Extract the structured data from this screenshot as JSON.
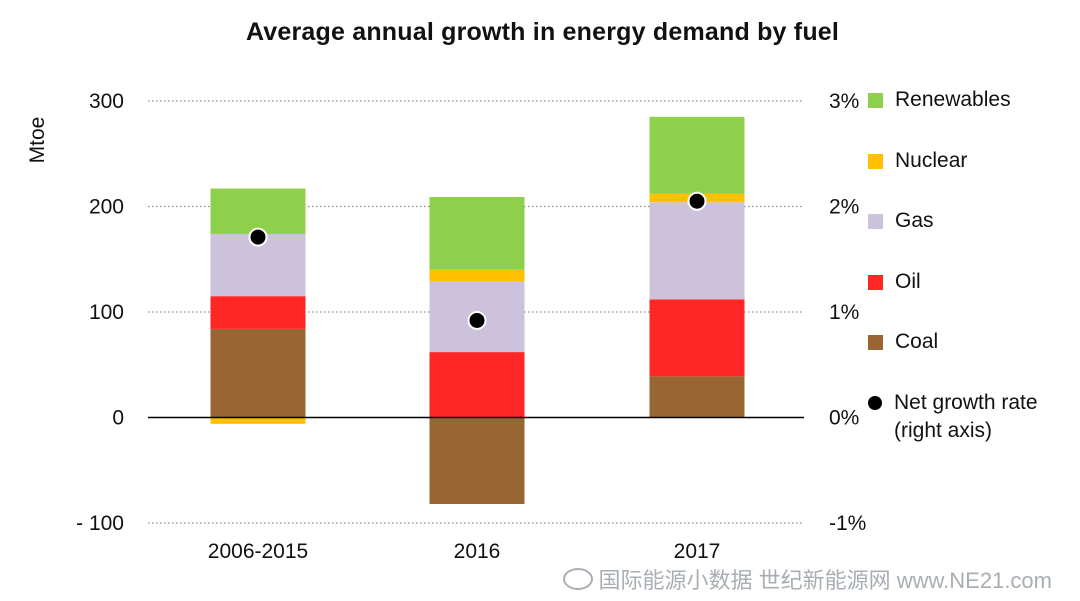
{
  "chart_data": {
    "type": "bar",
    "stacked": true,
    "title": "Average annual growth in energy demand by fuel",
    "ylabel": "Mtoe",
    "ylim": [
      -100,
      300
    ],
    "yticks": [
      {
        "value": 300,
        "label": "300"
      },
      {
        "value": 200,
        "label": "200"
      },
      {
        "value": 100,
        "label": "100"
      },
      {
        "value": 0,
        "label": "0"
      },
      {
        "value": -100,
        "label": "- 100"
      }
    ],
    "y2ticks": [
      "3%",
      "2%",
      "1%",
      "0%",
      "-1%"
    ],
    "categories": [
      "2006-2015",
      "2016",
      "2017"
    ],
    "series": [
      {
        "name": "Coal",
        "color": "#996633",
        "values": [
          84,
          -82,
          39
        ]
      },
      {
        "name": "Oil",
        "color": "#ff2626",
        "values": [
          31,
          62,
          73
        ]
      },
      {
        "name": "Gas",
        "color": "#ccc2dc",
        "values": [
          59,
          67,
          92
        ]
      },
      {
        "name": "Nuclear",
        "color": "#ffc000",
        "values": [
          -6,
          11,
          8
        ]
      },
      {
        "name": "Renewables",
        "color": "#8ed04c",
        "values": [
          43,
          69,
          73
        ]
      }
    ],
    "net_growth_rate": {
      "name": "Net growth rate\n(right axis)",
      "axis": "right",
      "values": [
        1.71,
        0.92,
        2.05
      ]
    },
    "legend": {
      "position": "right",
      "order": [
        "Renewables",
        "Nuclear",
        "Gas",
        "Oil",
        "Coal",
        "Net growth rate\n(right axis)"
      ]
    },
    "grid": "dotted-horizontal"
  },
  "watermark": "国际能源小数据 世纪新能源网 www.NE21.com"
}
